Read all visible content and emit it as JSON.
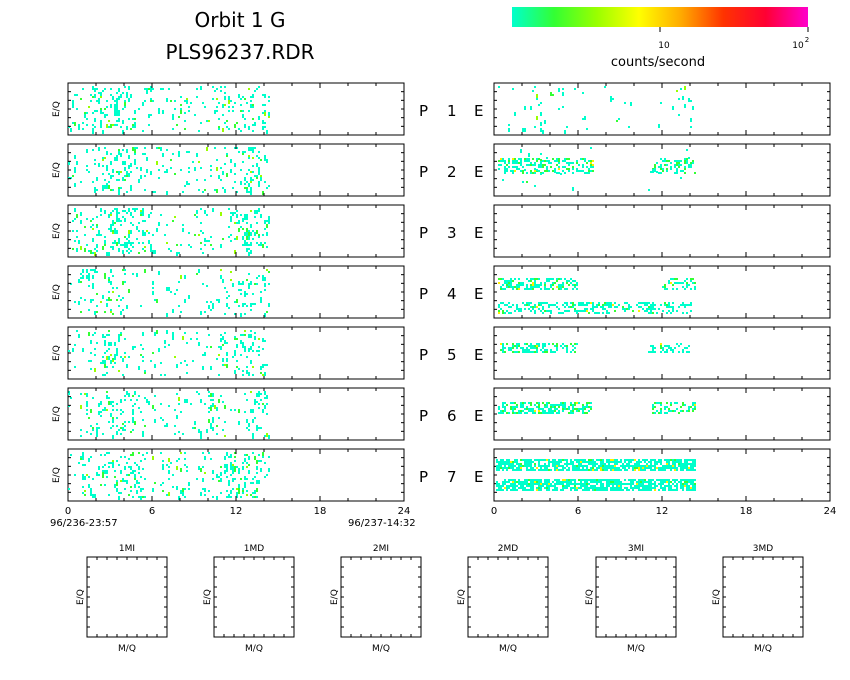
{
  "header": {
    "orbit": "Orbit  1  G",
    "file": "PLS96237.RDR"
  },
  "colorbar": {
    "label": "counts/second",
    "tick_mid": "10",
    "tick_max_base": "10",
    "tick_max_exp": "2",
    "colors": [
      "#00ffcc",
      "#33ff33",
      "#99ff00",
      "#ffff00",
      "#ffaa00",
      "#ff3300",
      "#ff0033",
      "#ff00cc"
    ]
  },
  "chart_data": {
    "type": "heatmap",
    "panels_left": [
      {
        "name": "P 1",
        "ylabel": "E/Q"
      },
      {
        "name": "P 2",
        "ylabel": "E/Q"
      },
      {
        "name": "P 3",
        "ylabel": "E/Q"
      },
      {
        "name": "P 4",
        "ylabel": "E/Q"
      },
      {
        "name": "P 5",
        "ylabel": "E/Q"
      },
      {
        "name": "P 6",
        "ylabel": "E/Q"
      },
      {
        "name": "P 7",
        "ylabel": "E/Q"
      }
    ],
    "row_labels": [
      {
        "p": "P",
        "n": "1",
        "e": "E"
      },
      {
        "p": "P",
        "n": "2",
        "e": "E"
      },
      {
        "p": "P",
        "n": "3",
        "e": "E"
      },
      {
        "p": "P",
        "n": "4",
        "e": "E"
      },
      {
        "p": "P",
        "n": "5",
        "e": "E"
      },
      {
        "p": "P",
        "n": "6",
        "e": "E"
      },
      {
        "p": "P",
        "n": "7",
        "e": "E"
      }
    ],
    "x_ticks": [
      "0",
      "6",
      "12",
      "18",
      "24"
    ],
    "xlim": [
      0,
      24
    ],
    "data_end_hour": 14.5,
    "time_start": "96/236-23:57",
    "time_end": "96/237-14:32",
    "bottom_panels": [
      {
        "title": "1MI",
        "xlabel": "M/Q",
        "ylabel": "E/Q"
      },
      {
        "title": "1MD",
        "xlabel": "M/Q",
        "ylabel": "E/Q"
      },
      {
        "title": "2MI",
        "xlabel": "M/Q",
        "ylabel": "E/Q"
      },
      {
        "title": "2MD",
        "xlabel": "M/Q",
        "ylabel": "E/Q"
      },
      {
        "title": "3MI",
        "xlabel": "M/Q",
        "ylabel": "E/Q"
      },
      {
        "title": "3MD",
        "xlabel": "M/Q",
        "ylabel": "E/Q"
      }
    ]
  }
}
